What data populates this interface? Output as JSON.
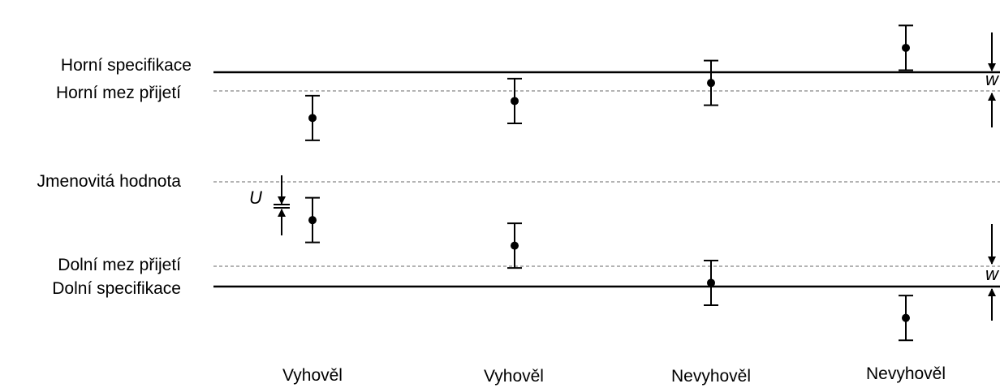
{
  "labels": {
    "upper_spec": "Horní specifikace",
    "upper_accept": "Horní mez přijetí",
    "nominal": "Jmenovitá hodnota",
    "lower_accept": "Dolní mez přijetí",
    "lower_spec": "Dolní specifikace"
  },
  "results": [
    "Vyhověl",
    "Vyhověl",
    "Nevyhověl",
    "Nevyhověl"
  ],
  "dimensions": {
    "uncertainty": "U",
    "guard_band": "w"
  },
  "colors": {
    "solid_line": "#000000",
    "dashed_line": "#9a9a9a",
    "marker": "#000000"
  },
  "chart_data": {
    "type": "scatter",
    "reference_lines": [
      {
        "name": "Horní specifikace",
        "value": 1.0,
        "style": "solid"
      },
      {
        "name": "Horní mez přijetí",
        "value": 0.83,
        "style": "dashed"
      },
      {
        "name": "Jmenovitá hodnota",
        "value": 0.0,
        "style": "dashed"
      },
      {
        "name": "Dolní mez přijetí",
        "value": -0.83,
        "style": "dashed"
      },
      {
        "name": "Dolní specifikace",
        "value": -1.0,
        "style": "solid"
      }
    ],
    "groups": [
      {
        "label": "Vyhověl",
        "points": [
          {
            "value": 0.6,
            "uncertainty": 0.21
          },
          {
            "value": -0.36,
            "uncertainty": 0.21
          }
        ]
      },
      {
        "label": "Vyhověl",
        "points": [
          {
            "value": 0.76,
            "uncertainty": 0.21
          },
          {
            "value": -0.6,
            "uncertainty": 0.21
          }
        ]
      },
      {
        "label": "Nevyhověl",
        "points": [
          {
            "value": 0.93,
            "uncertainty": 0.21
          },
          {
            "value": -0.95,
            "uncertainty": 0.21
          }
        ]
      },
      {
        "label": "Nevyhověl",
        "points": [
          {
            "value": 1.26,
            "uncertainty": 0.21
          },
          {
            "value": -1.28,
            "uncertainty": 0.21
          }
        ]
      }
    ]
  }
}
